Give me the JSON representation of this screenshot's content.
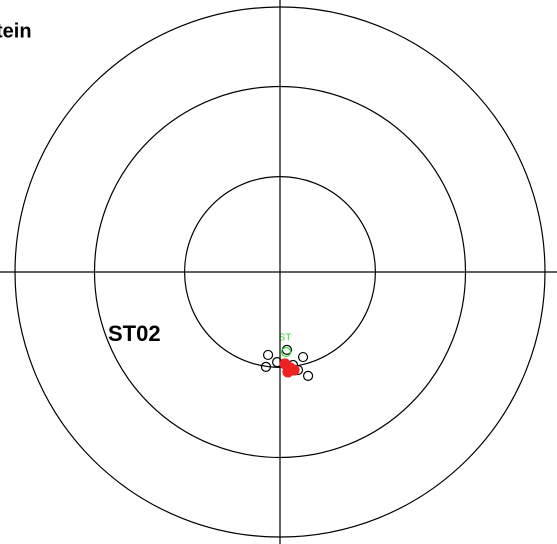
{
  "chart_data": {
    "type": "stereonet",
    "title": "tein",
    "label": "ST02",
    "annotation": "ST",
    "xlim": [
      -1,
      1
    ],
    "ylim": [
      -1,
      1
    ],
    "rings": [
      0.36,
      0.7,
      1
    ],
    "series": [
      {
        "color": "#000000",
        "filled": false,
        "x": [
          -0.045,
          -0.053,
          -0.011,
          0.026,
          0.087,
          0.068,
          0.106,
          0.049
        ],
        "values": [
          -0.313,
          -0.358,
          -0.34,
          -0.294,
          -0.321,
          -0.37,
          -0.392,
          -0.351
        ]
      },
      {
        "color": "#ee2222",
        "filled": true,
        "x": [
          0.019,
          0.038,
          0.03,
          0.053
        ],
        "values": [
          -0.347,
          -0.362,
          -0.377,
          -0.37
        ]
      },
      {
        "color": "#33dd33",
        "filled": false,
        "x": [
          0.023
        ],
        "values": [
          -0.302
        ]
      }
    ]
  }
}
